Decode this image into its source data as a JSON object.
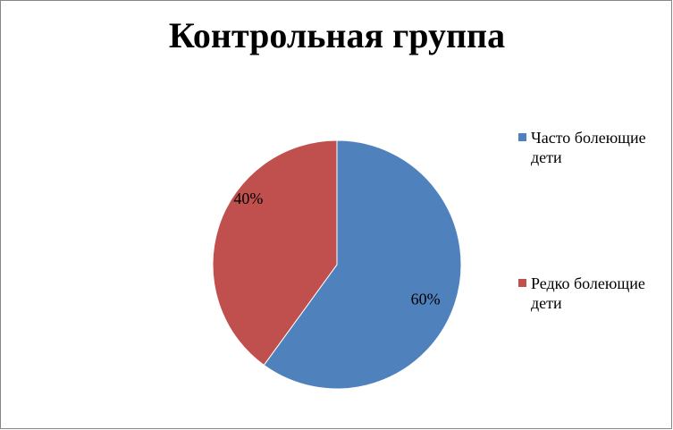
{
  "chart_data": {
    "type": "pie",
    "title": "Контрольная группа",
    "categories": [
      "Часто болеющие дети",
      "Редко болеющие дети"
    ],
    "values": [
      60,
      40
    ],
    "value_labels": [
      "60%",
      "40%"
    ],
    "colors": [
      "#4f81bd",
      "#c0504d"
    ],
    "legend": "right"
  }
}
